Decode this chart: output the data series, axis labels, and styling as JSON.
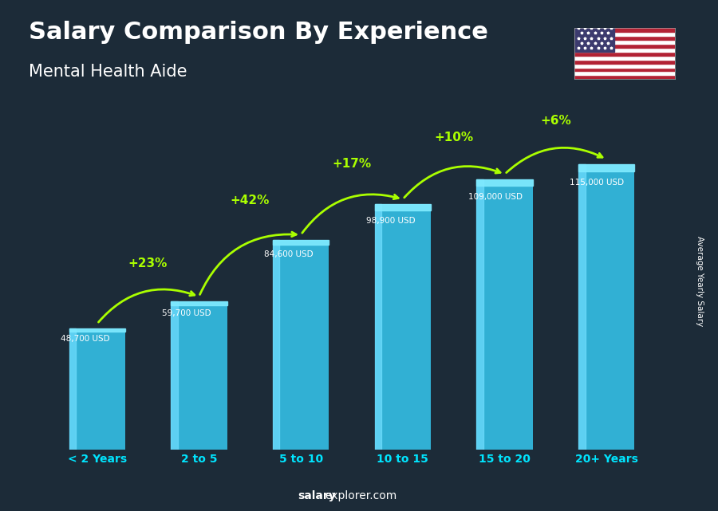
{
  "title": "Salary Comparison By Experience",
  "subtitle": "Mental Health Aide",
  "categories": [
    "< 2 Years",
    "2 to 5",
    "5 to 10",
    "10 to 15",
    "15 to 20",
    "20+ Years"
  ],
  "values": [
    48700,
    59700,
    84600,
    98900,
    109000,
    115000
  ],
  "salary_labels": [
    "48,700 USD",
    "59,700 USD",
    "84,600 USD",
    "98,900 USD",
    "109,000 USD",
    "115,000 USD"
  ],
  "pct_changes": [
    "+23%",
    "+42%",
    "+17%",
    "+10%",
    "+6%"
  ],
  "bar_color_main": "#35c8f0",
  "bar_color_light": "#70deff",
  "bar_color_cap": "#80eaff",
  "background_color": "#1c2b38",
  "text_color_white": "#ffffff",
  "text_color_cyan": "#00e5ff",
  "text_color_green": "#aaff00",
  "ylabel": "Average Yearly Salary",
  "footer_bold": "salary",
  "footer_normal": "explorer.com",
  "ylim": [
    0,
    140000
  ]
}
